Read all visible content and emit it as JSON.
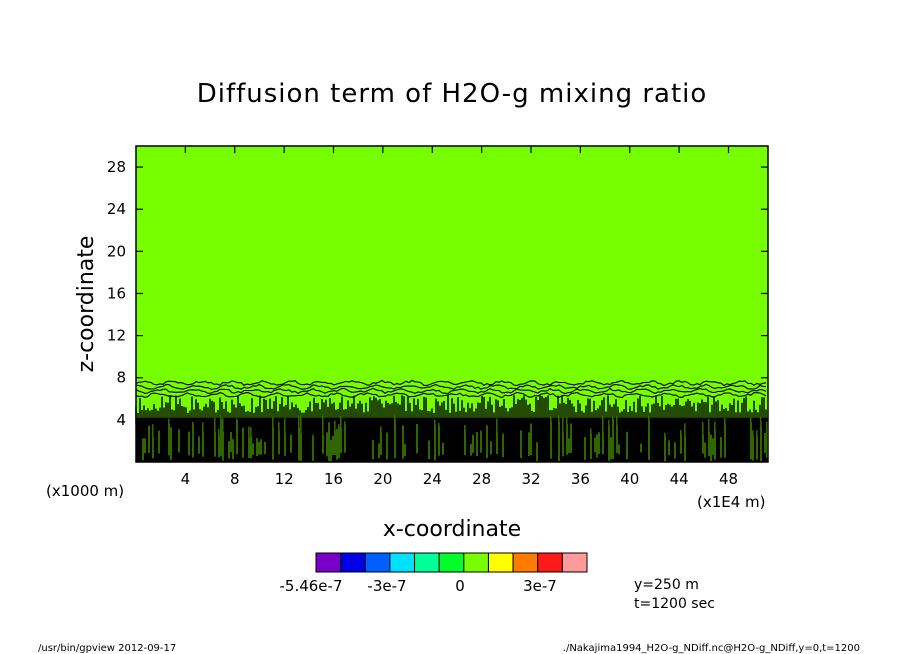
{
  "chart_data": {
    "type": "heatmap",
    "title": "Diffusion term of H2O-g mixing ratio",
    "xlabel": "x-coordinate",
    "ylabel": "z-coordinate",
    "x_unit_left": "(x1000 m)",
    "x_unit_right": "(x1E4 m)",
    "xlim": [
      0,
      51.2
    ],
    "ylim": [
      0,
      30
    ],
    "x_ticks": [
      "4",
      "8",
      "12",
      "16",
      "20",
      "24",
      "28",
      "32",
      "36",
      "40",
      "44",
      "48"
    ],
    "y_ticks": [
      "4",
      "8",
      "12",
      "16",
      "20",
      "24",
      "28"
    ],
    "background_level_color": "#77ff00",
    "contour_color": "#000000",
    "noisy_layer_top_z": 7.5,
    "colorbar": {
      "colors": [
        "#7a00c8",
        "#0000e6",
        "#0060ff",
        "#00e0ff",
        "#00ff99",
        "#00ff2a",
        "#77ff00",
        "#ffff00",
        "#ff7a00",
        "#ff1a1a",
        "#ff9a9a"
      ],
      "labels": [
        "-5.46e-7",
        "-3e-7",
        "0",
        "3e-7"
      ]
    },
    "annotations": [
      "y=250 m",
      "t=1200 sec"
    ]
  },
  "footer": {
    "left": "/usr/bin/gpview   2012-09-17",
    "right": "./Nakajima1994_H2O-g_NDiff.nc@H2O-g_NDiff,y=0,t=1200"
  }
}
